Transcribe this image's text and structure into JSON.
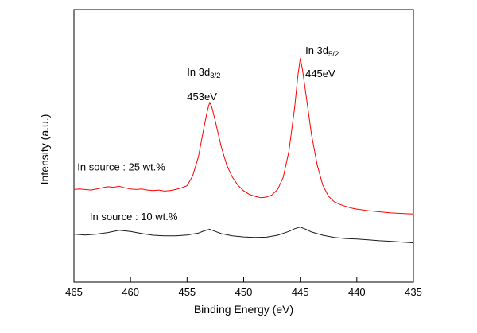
{
  "chart_data": {
    "type": "line",
    "title": "",
    "xlabel": "Binding Energy (eV)",
    "ylabel": "Intensity (a.u.)",
    "xlim": [
      465,
      435
    ],
    "x_reversed": true,
    "ylim": [
      0,
      10
    ],
    "grid": false,
    "frame": true,
    "legend_position": "none",
    "x_ticks": [
      465,
      460,
      455,
      450,
      445,
      440,
      435
    ],
    "axis_color": "#000000",
    "background": "#ffffff",
    "series": [
      {
        "name": "In source : 25 wt.%",
        "color": "#ff0000",
        "label_x": 464.7,
        "label_y": 4.1,
        "points": [
          [
            465,
            3.4
          ],
          [
            464.5,
            3.42
          ],
          [
            464,
            3.4
          ],
          [
            463.5,
            3.38
          ],
          [
            463,
            3.42
          ],
          [
            462.5,
            3.46
          ],
          [
            462,
            3.5
          ],
          [
            461.5,
            3.48
          ],
          [
            461,
            3.52
          ],
          [
            460.5,
            3.46
          ],
          [
            460,
            3.42
          ],
          [
            459.5,
            3.4
          ],
          [
            459,
            3.42
          ],
          [
            458.5,
            3.38
          ],
          [
            458,
            3.36
          ],
          [
            457.5,
            3.38
          ],
          [
            457,
            3.34
          ],
          [
            456.5,
            3.36
          ],
          [
            456,
            3.4
          ],
          [
            455.5,
            3.46
          ],
          [
            455,
            3.54
          ],
          [
            454.5,
            3.9
          ],
          [
            454,
            4.6
          ],
          [
            453.5,
            5.7
          ],
          [
            453.2,
            6.3
          ],
          [
            453,
            6.6
          ],
          [
            452.8,
            6.4
          ],
          [
            452.5,
            5.9
          ],
          [
            452,
            5.0
          ],
          [
            451.5,
            4.3
          ],
          [
            451,
            3.85
          ],
          [
            450.5,
            3.55
          ],
          [
            450,
            3.35
          ],
          [
            449.5,
            3.22
          ],
          [
            449,
            3.15
          ],
          [
            448.5,
            3.1
          ],
          [
            448,
            3.12
          ],
          [
            447.5,
            3.2
          ],
          [
            447,
            3.4
          ],
          [
            446.5,
            3.85
          ],
          [
            446,
            4.8
          ],
          [
            445.5,
            6.4
          ],
          [
            445.2,
            7.6
          ],
          [
            445,
            8.2
          ],
          [
            444.8,
            7.8
          ],
          [
            444.5,
            6.9
          ],
          [
            444,
            5.4
          ],
          [
            443.5,
            4.3
          ],
          [
            443,
            3.55
          ],
          [
            442.5,
            3.15
          ],
          [
            442,
            2.95
          ],
          [
            441.5,
            2.85
          ],
          [
            441,
            2.78
          ],
          [
            440.5,
            2.72
          ],
          [
            440,
            2.68
          ],
          [
            439,
            2.62
          ],
          [
            438,
            2.58
          ],
          [
            437,
            2.54
          ],
          [
            436,
            2.52
          ],
          [
            435,
            2.5
          ]
        ]
      },
      {
        "name": "In source : 10 wt.%",
        "color": "#1a1a1a",
        "label_x": 463.6,
        "label_y": 2.27,
        "points": [
          [
            465,
            1.76
          ],
          [
            464,
            1.73
          ],
          [
            463,
            1.76
          ],
          [
            462,
            1.82
          ],
          [
            461,
            1.9
          ],
          [
            460,
            1.86
          ],
          [
            459,
            1.78
          ],
          [
            458,
            1.72
          ],
          [
            457,
            1.7
          ],
          [
            456,
            1.7
          ],
          [
            455,
            1.73
          ],
          [
            454,
            1.8
          ],
          [
            453.5,
            1.88
          ],
          [
            453,
            1.94
          ],
          [
            452.5,
            1.86
          ],
          [
            452,
            1.78
          ],
          [
            451,
            1.7
          ],
          [
            450,
            1.66
          ],
          [
            449,
            1.64
          ],
          [
            448,
            1.65
          ],
          [
            447,
            1.72
          ],
          [
            446,
            1.86
          ],
          [
            445.5,
            1.96
          ],
          [
            445,
            2.02
          ],
          [
            444.5,
            1.94
          ],
          [
            444,
            1.84
          ],
          [
            443,
            1.72
          ],
          [
            442,
            1.64
          ],
          [
            441,
            1.6
          ],
          [
            440,
            1.58
          ],
          [
            439,
            1.55
          ],
          [
            438,
            1.52
          ],
          [
            437,
            1.5
          ],
          [
            436,
            1.47
          ],
          [
            435,
            1.44
          ]
        ]
      }
    ],
    "annotations": [
      {
        "text": "In 3d",
        "sub": "3/2",
        "x": 455.0,
        "y": 7.58
      },
      {
        "text": "453eV",
        "sub": "",
        "x": 455.0,
        "y": 6.68
      },
      {
        "text": "In 3d",
        "sub": "5/2",
        "x": 444.55,
        "y": 8.37
      },
      {
        "text": "445eV",
        "sub": "",
        "x": 444.55,
        "y": 7.52
      }
    ]
  }
}
